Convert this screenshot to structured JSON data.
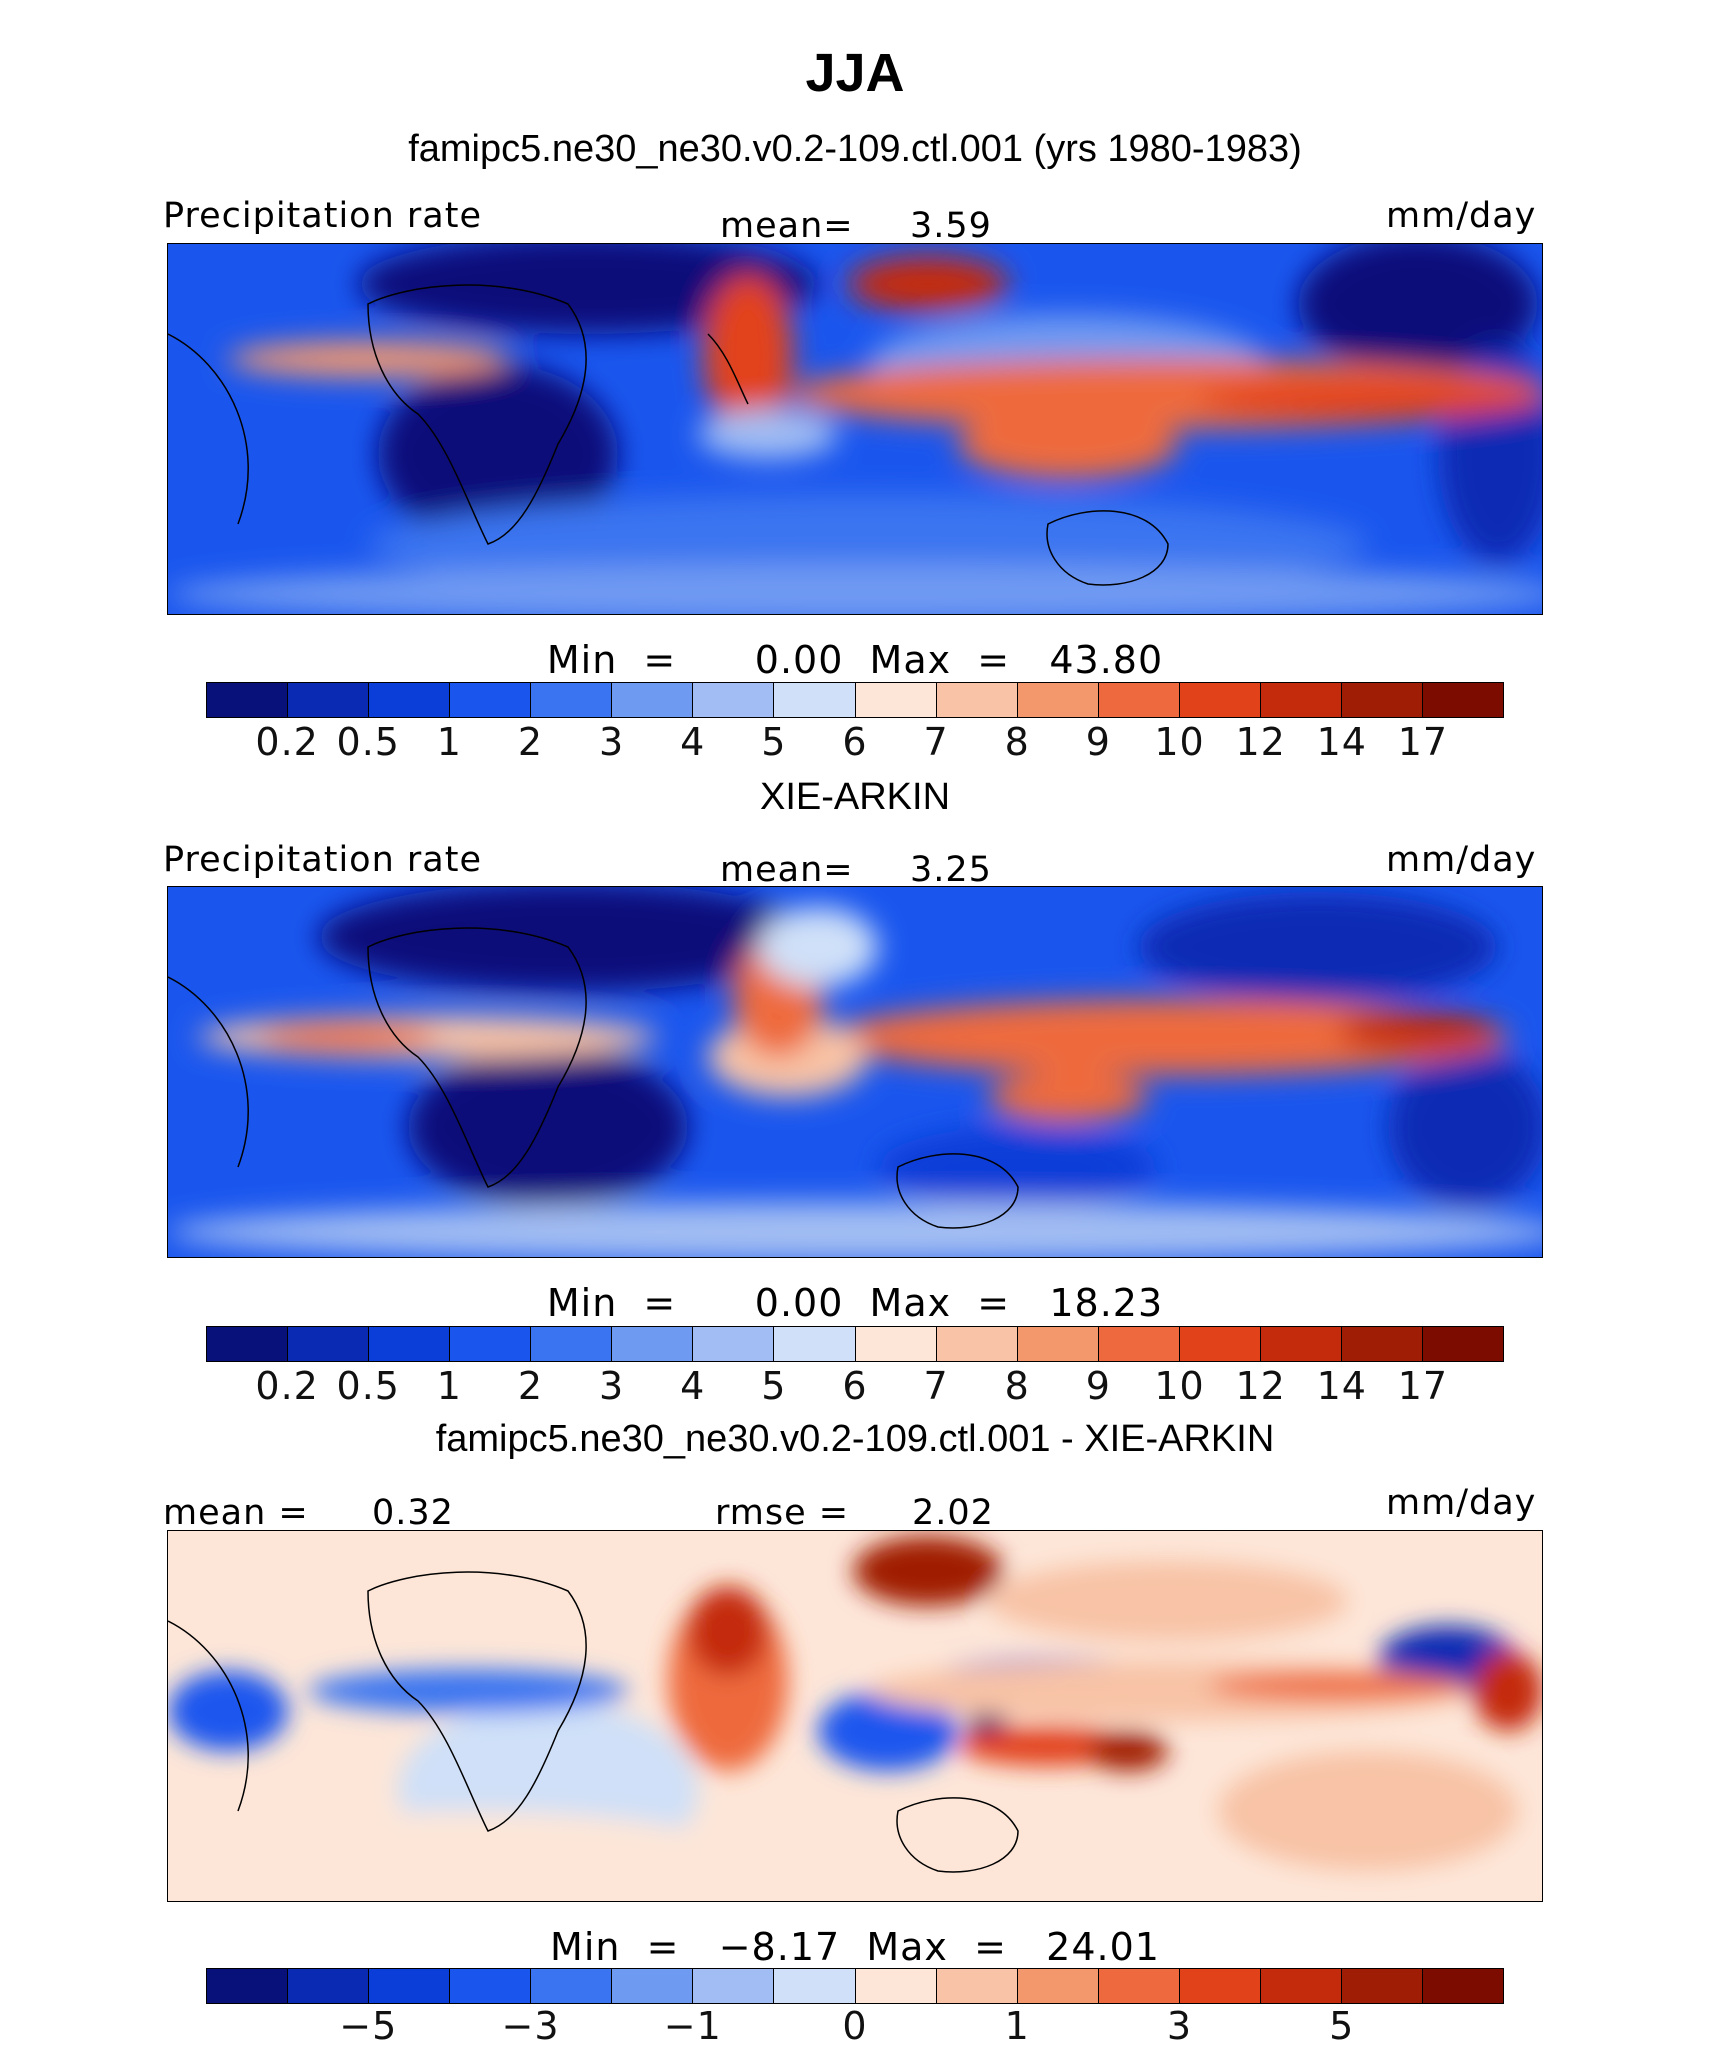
{
  "colors": {
    "precip": [
      "#08117a",
      "#0a2ab4",
      "#0b3ed8",
      "#1a56ee",
      "#3a74f0",
      "#6f9af2",
      "#a2bdf3",
      "#cfe0f8",
      "#fde6d8",
      "#f8c3a6",
      "#f3976d",
      "#ee6a3e",
      "#e2421a",
      "#c42a0c",
      "#a01d05",
      "#7c0c00"
    ],
    "diff": [
      "#08117a",
      "#0a2ab4",
      "#0b3ed8",
      "#1a56ee",
      "#3a74f0",
      "#6f9af2",
      "#a2bdf3",
      "#cfe0f8",
      "#fde6d8",
      "#f8c3a6",
      "#f3976d",
      "#ee6a3e",
      "#e2421a",
      "#c42a0c",
      "#a01d05",
      "#7c0c00"
    ]
  },
  "chart_data": [
    {
      "type": "heatmap",
      "title": "JJA",
      "subtitle": "famipc5.ne30_ne30.v0.2-109.ctl.001 (yrs 1980-1983)",
      "variable": "Precipitation rate",
      "units": "mm/day",
      "mean_label": "mean=",
      "mean": "3.59",
      "min_label": "Min  =",
      "min": "0.00",
      "max_label": "Max  =",
      "max": "43.80",
      "levels": [
        "0.2",
        "0.5",
        "1",
        "2",
        "3",
        "4",
        "5",
        "6",
        "7",
        "8",
        "9",
        "10",
        "12",
        "14",
        "17"
      ]
    },
    {
      "type": "heatmap",
      "subtitle": "XIE-ARKIN",
      "variable": "Precipitation rate",
      "units": "mm/day",
      "mean_label": "mean=",
      "mean": "3.25",
      "min_label": "Min  =",
      "min": "0.00",
      "max_label": "Max  =",
      "max": "18.23",
      "levels": [
        "0.2",
        "0.5",
        "1",
        "2",
        "3",
        "4",
        "5",
        "6",
        "7",
        "8",
        "9",
        "10",
        "12",
        "14",
        "17"
      ]
    },
    {
      "type": "heatmap",
      "subtitle": "famipc5.ne30_ne30.v0.2-109.ctl.001 - XIE-ARKIN",
      "units": "mm/day",
      "mean_label": "mean =",
      "mean": "0.32",
      "rmse_label": "rmse =",
      "rmse": "2.02",
      "min_label": "Min  =",
      "min": "−8.17",
      "max_label": "Max  =",
      "max": "24.01",
      "levels": [
        "−5",
        "−3",
        "−1",
        "0",
        "1",
        "3",
        "5"
      ]
    }
  ]
}
